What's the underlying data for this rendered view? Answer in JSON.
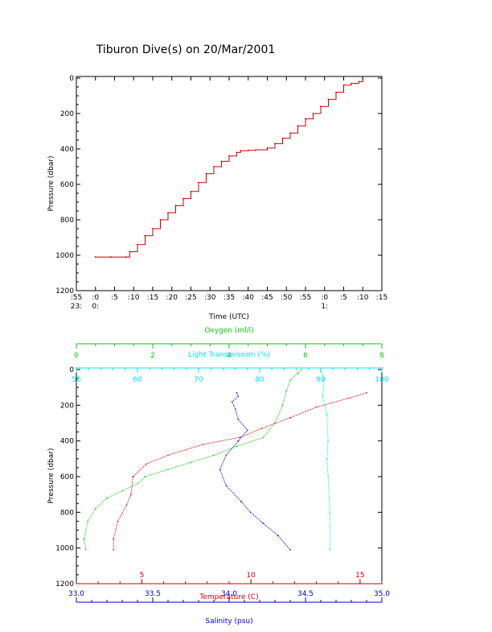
{
  "title": "Tiburon Dive(s) on 20/Mar/2001",
  "colors": {
    "axis": "#000000",
    "depth_trace": "#cc0000",
    "oxygen": "#00cc00",
    "light": "#00e5ee",
    "temperature": "#cc0000",
    "salinity": "#0000cc"
  },
  "chart_data": [
    {
      "type": "line",
      "name": "depth-vs-time",
      "xlabel": "Time (UTC)",
      "ylabel": "Pressure (dbar)",
      "ylim": [
        1200,
        0
      ],
      "xlim": [
        -5,
        75
      ],
      "x_unit": "minutes after 23:00",
      "x_ticks": [
        {
          "x": -5,
          "top": ":55",
          "bottom": "23:"
        },
        {
          "x": 0,
          "top": ":0",
          "bottom": "0:"
        },
        {
          "x": 5,
          "top": ":5",
          "bottom": ""
        },
        {
          "x": 10,
          "top": ":10",
          "bottom": ""
        },
        {
          "x": 15,
          "top": ":15",
          "bottom": ""
        },
        {
          "x": 20,
          "top": ":20",
          "bottom": ""
        },
        {
          "x": 25,
          "top": ":25",
          "bottom": ""
        },
        {
          "x": 30,
          "top": ":30",
          "bottom": ""
        },
        {
          "x": 35,
          "top": ":35",
          "bottom": ""
        },
        {
          "x": 40,
          "top": ":40",
          "bottom": ""
        },
        {
          "x": 45,
          "top": ":45",
          "bottom": ""
        },
        {
          "x": 50,
          "top": ":50",
          "bottom": ""
        },
        {
          "x": 55,
          "top": ":55",
          "bottom": ""
        },
        {
          "x": 60,
          "top": ":0",
          "bottom": "1:"
        },
        {
          "x": 65,
          "top": ":5",
          "bottom": ""
        },
        {
          "x": 70,
          "top": ":10",
          "bottom": ""
        },
        {
          "x": 75,
          "top": ":15",
          "bottom": ""
        }
      ],
      "y_ticks": [
        "0",
        "200",
        "400",
        "600",
        "800",
        "1000",
        "1200"
      ],
      "series": [
        {
          "x": [
            0,
            4,
            8,
            9,
            11,
            13,
            15,
            17,
            19,
            21,
            23,
            25,
            27,
            29,
            31,
            33,
            35,
            37,
            38,
            40,
            42,
            45,
            47,
            49,
            51,
            53,
            55,
            57,
            59,
            61,
            63,
            65,
            67,
            68,
            69,
            70
          ],
          "y": [
            1010,
            1010,
            1010,
            980,
            940,
            890,
            850,
            800,
            760,
            720,
            680,
            640,
            590,
            540,
            500,
            470,
            440,
            420,
            410,
            408,
            405,
            395,
            370,
            340,
            310,
            270,
            230,
            200,
            160,
            120,
            80,
            40,
            30,
            30,
            20,
            0
          ]
        }
      ]
    },
    {
      "type": "line",
      "name": "profiles",
      "ylabel": "Pressure (dbar)",
      "ylim": [
        1200,
        0
      ],
      "y_ticks": [
        "0",
        "200",
        "400",
        "600",
        "800",
        "1000",
        "1200"
      ],
      "axes": {
        "oxygen": {
          "label": "Oxygen (ml/l)",
          "range": [
            0,
            8
          ],
          "ticks": [
            "0",
            "2",
            "4",
            "6",
            "8"
          ]
        },
        "light": {
          "label": "Light Transmission (%)",
          "range": [
            50,
            100
          ],
          "ticks": [
            "50",
            "60",
            "70",
            "80",
            "90",
            "100"
          ]
        },
        "temperature": {
          "label": "Temperature (C)",
          "range": [
            2,
            16
          ],
          "ticks": [
            "5",
            "10",
            "15"
          ]
        },
        "salinity": {
          "label": "Salinity (psu)",
          "range": [
            33.0,
            35.0
          ],
          "ticks": [
            "33.0",
            "33.5",
            "34.0",
            "34.5",
            "35.0"
          ]
        }
      },
      "series": [
        {
          "name": "oxygen",
          "x": [
            0.25,
            0.2,
            0.3,
            0.5,
            0.8,
            1.2,
            1.6,
            1.8,
            2.4,
            3.0,
            3.6,
            4.2,
            4.9,
            5.2,
            5.4,
            5.5,
            5.6,
            5.8,
            5.9
          ],
          "y": [
            1010,
            950,
            850,
            780,
            720,
            680,
            640,
            600,
            560,
            520,
            480,
            430,
            380,
            300,
            200,
            120,
            60,
            20,
            0
          ]
        },
        {
          "name": "light",
          "x": [
            90.0,
            90.5,
            90.3,
            91.0,
            91.2,
            91.0,
            91.2,
            91.5,
            91.5
          ],
          "y": [
            0,
            60,
            150,
            250,
            400,
            500,
            600,
            800,
            1010
          ]
        },
        {
          "name": "temperature",
          "x": [
            3.7,
            3.7,
            3.9,
            4.3,
            4.5,
            4.6,
            5.2,
            6.2,
            7.8,
            9.5,
            10.5,
            11.8,
            13.0,
            14.5,
            15.3
          ],
          "y": [
            1010,
            950,
            850,
            760,
            700,
            600,
            530,
            480,
            420,
            380,
            330,
            270,
            210,
            160,
            130
          ]
        },
        {
          "name": "salinity",
          "x": [
            34.4,
            34.32,
            34.22,
            34.14,
            34.08,
            33.98,
            33.94,
            33.98,
            34.06,
            34.12,
            34.06,
            34.04,
            34.02,
            34.06,
            34.05
          ],
          "y": [
            1010,
            930,
            860,
            800,
            740,
            650,
            560,
            480,
            400,
            340,
            280,
            220,
            180,
            150,
            130
          ]
        }
      ]
    }
  ]
}
